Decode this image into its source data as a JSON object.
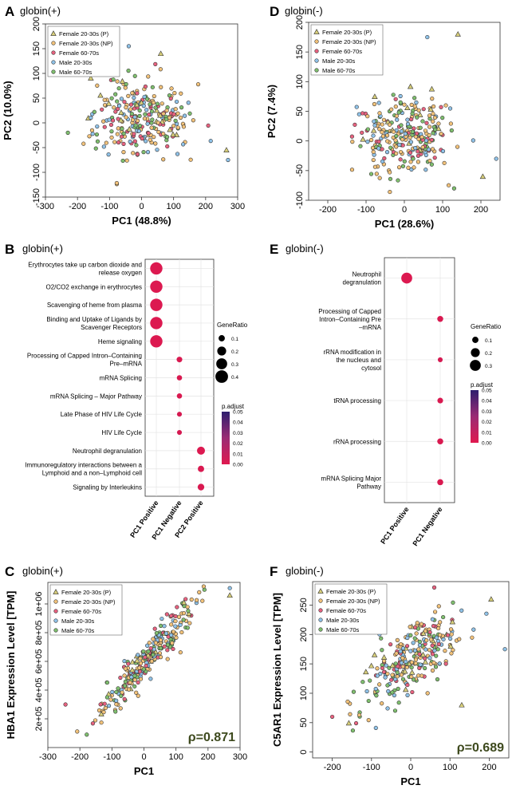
{
  "colors": {
    "female_p": "#d8cf7a",
    "female_np": "#f2c27a",
    "female_old": "#e7627f",
    "male_young": "#8fc2e8",
    "male_old": "#7fbf6e",
    "dot_high": "#e0194f",
    "dot_low": "#2e1e6e"
  },
  "groups": [
    "Female 20-30s (P)",
    "Female 20-30s (NP)",
    "Female 60-70s",
    "Male 20-30s",
    "Male 60-70s"
  ],
  "panels": {
    "A": {
      "letter": "A",
      "title": "globin(+)"
    },
    "B": {
      "letter": "B",
      "title": "globin(+)"
    },
    "C": {
      "letter": "C",
      "title": "globin(+)"
    },
    "D": {
      "letter": "D",
      "title": "globin(-)"
    },
    "E": {
      "letter": "E",
      "title": "globin(-)"
    },
    "F": {
      "letter": "F",
      "title": "globin(-)"
    }
  },
  "chart_data": [
    {
      "id": "A",
      "type": "scatter",
      "title": "globin(+)",
      "xlabel": "PC1 (48.8%)",
      "ylabel": "PC2 (10.0%)",
      "xlim": [
        -300,
        300
      ],
      "ylim": [
        -150,
        200
      ],
      "xticks": [
        -300,
        -200,
        -100,
        0,
        100,
        200,
        300
      ],
      "yticks": [
        -150,
        -100,
        -50,
        0,
        50,
        100,
        150,
        200
      ],
      "legend": [
        "Female 20-30s (P)",
        "Female 20-30s (NP)",
        "Female 60-70s",
        "Male 20-30s",
        "Male 60-70s"
      ],
      "legend_position": "top-left",
      "n_points": 260,
      "cloud": {
        "x_mean": 0,
        "x_sd": 75,
        "y_mean": 5,
        "y_sd": 38,
        "slope": 0
      },
      "highlighted_points": [
        {
          "x": 265,
          "y": -55,
          "group": "Female 20-30s (P)"
        },
        {
          "x": 270,
          "y": -75,
          "group": "Male 20-30s"
        },
        {
          "x": 60,
          "y": 140,
          "group": "Female 20-30s (P)"
        },
        {
          "x": -40,
          "y": 155,
          "group": "Male 20-30s"
        },
        {
          "x": -230,
          "y": -20,
          "group": "Male 60-70s"
        }
      ]
    },
    {
      "id": "D",
      "type": "scatter",
      "title": "globin(-)",
      "xlabel": "PC1 (28.6%)",
      "ylabel": "PC2 (7.4%)",
      "xlim": [
        -250,
        250
      ],
      "ylim": [
        -100,
        200
      ],
      "xticks": [
        -200,
        -100,
        0,
        100,
        200
      ],
      "yticks": [
        -100,
        -50,
        0,
        50,
        100,
        150,
        200
      ],
      "legend": [
        "Female 20-30s (P)",
        "Female 20-30s (NP)",
        "Female 60-70s",
        "Male 20-30s",
        "Male 60-70s"
      ],
      "legend_position": "top-left",
      "n_points": 260,
      "cloud": {
        "x_mean": 0,
        "x_sd": 65,
        "y_mean": 10,
        "y_sd": 32,
        "slope": 0
      },
      "highlighted_points": [
        {
          "x": 140,
          "y": 180,
          "group": "Female 20-30s (P)"
        },
        {
          "x": 60,
          "y": 175,
          "group": "Male 20-30s"
        },
        {
          "x": 205,
          "y": -60,
          "group": "Female 20-30s (P)"
        },
        {
          "x": 240,
          "y": -30,
          "group": "Male 20-30s"
        },
        {
          "x": 130,
          "y": -80,
          "group": "Male 60-70s"
        }
      ]
    },
    {
      "id": "B",
      "type": "dot",
      "title": "globin(+)",
      "categories": [
        "PC1 Positive",
        "PC1 Negative",
        "PC2 Positive"
      ],
      "terms": [
        "Erythrocytes take up carbon dioxide and release oxygen",
        "O2/CO2 exchange in erythrocytes",
        "Scavenging of heme from plasma",
        "Binding and Uptake of Ligands by Scavenger Receptors",
        "Heme signaling",
        "Processing of Capped Intron–Containing Pre–mRNA",
        "mRNA Splicing",
        "mRNA Splicing – Major Pathway",
        "Late Phase of HIV Life Cycle",
        "HIV Life Cycle",
        "Neutrophil degranulation",
        "Immunoregulatory interactions between a Lymphoid and a non–Lymphoid cell",
        "Signaling by Interleukins"
      ],
      "points": [
        {
          "term": 0,
          "cat": 0,
          "gene_ratio": 0.38,
          "p_adjust": 0.001
        },
        {
          "term": 1,
          "cat": 0,
          "gene_ratio": 0.38,
          "p_adjust": 0.001
        },
        {
          "term": 2,
          "cat": 0,
          "gene_ratio": 0.38,
          "p_adjust": 0.001
        },
        {
          "term": 3,
          "cat": 0,
          "gene_ratio": 0.38,
          "p_adjust": 0.001
        },
        {
          "term": 4,
          "cat": 0,
          "gene_ratio": 0.38,
          "p_adjust": 0.001
        },
        {
          "term": 5,
          "cat": 1,
          "gene_ratio": 0.08,
          "p_adjust": 0.002
        },
        {
          "term": 6,
          "cat": 1,
          "gene_ratio": 0.07,
          "p_adjust": 0.002
        },
        {
          "term": 7,
          "cat": 1,
          "gene_ratio": 0.07,
          "p_adjust": 0.002
        },
        {
          "term": 8,
          "cat": 1,
          "gene_ratio": 0.06,
          "p_adjust": 0.003
        },
        {
          "term": 9,
          "cat": 1,
          "gene_ratio": 0.06,
          "p_adjust": 0.003
        },
        {
          "term": 10,
          "cat": 2,
          "gene_ratio": 0.16,
          "p_adjust": 0.001
        },
        {
          "term": 11,
          "cat": 2,
          "gene_ratio": 0.1,
          "p_adjust": 0.002
        },
        {
          "term": 12,
          "cat": 2,
          "gene_ratio": 0.11,
          "p_adjust": 0.002
        }
      ],
      "size_legend": {
        "title": "GeneRatio",
        "values": [
          0.1,
          0.2,
          0.3,
          0.4
        ]
      },
      "color_legend": {
        "title": "p.adjust",
        "ticks": [
          "0.05",
          "0.04",
          "0.03",
          "0.02",
          "0.01",
          "0.00"
        ]
      }
    },
    {
      "id": "E",
      "type": "dot",
      "title": "globin(-)",
      "categories": [
        "PC1 Positive",
        "PC1 Negative"
      ],
      "terms": [
        "Neutrophil degranulation",
        "Processing of Capped Intron–Containing Pre –mRNA",
        "rRNA modification in the nucleus and cytosol",
        "tRNA processing",
        "rRNA processing",
        "mRNA Splicing Major Pathway"
      ],
      "points": [
        {
          "term": 0,
          "cat": 0,
          "gene_ratio": 0.3,
          "p_adjust": 0.001
        },
        {
          "term": 1,
          "cat": 1,
          "gene_ratio": 0.09,
          "p_adjust": 0.002
        },
        {
          "term": 2,
          "cat": 1,
          "gene_ratio": 0.06,
          "p_adjust": 0.003
        },
        {
          "term": 3,
          "cat": 1,
          "gene_ratio": 0.08,
          "p_adjust": 0.002
        },
        {
          "term": 4,
          "cat": 1,
          "gene_ratio": 0.09,
          "p_adjust": 0.002
        },
        {
          "term": 5,
          "cat": 1,
          "gene_ratio": 0.09,
          "p_adjust": 0.002
        }
      ],
      "size_legend": {
        "title": "GeneRatio",
        "values": [
          0.1,
          0.2,
          0.3
        ]
      },
      "color_legend": {
        "title": "p.adjust",
        "ticks": [
          "0.05",
          "0.04",
          "0.03",
          "0.02",
          "0.01",
          "0.00"
        ]
      }
    },
    {
      "id": "C",
      "type": "scatter",
      "title": "globin(+)",
      "xlabel": "PC1",
      "ylabel": "HBA1 Expression Level [TPM]",
      "xlim": [
        -300,
        300
      ],
      "ylim": [
        0,
        1150000
      ],
      "xticks": [
        -300,
        -200,
        -100,
        0,
        100,
        200,
        300
      ],
      "yticks": [
        200000,
        400000,
        600000,
        800000,
        1000000
      ],
      "ytick_labels": [
        "2e+05",
        "4e+05",
        "6e+05",
        "8e+05",
        "1e+06"
      ],
      "legend": [
        "Female 20-30s (P)",
        "Female 20-30s (NP)",
        "Female 60-70s",
        "Male 20-30s",
        "Male 60-70s"
      ],
      "legend_position": "top-left",
      "annotation": "ρ=0.871",
      "n_points": 260,
      "cloud": {
        "x_mean": 10,
        "x_sd": 75,
        "y_mean": 620000,
        "y_sd": 70000,
        "slope": 2400
      },
      "highlighted_points": [
        {
          "x": 268,
          "y": 1110000,
          "group": "Male 20-30s"
        },
        {
          "x": 268,
          "y": 1060000,
          "group": "Female 20-30s (P)"
        },
        {
          "x": -245,
          "y": 300000,
          "group": "Female 60-70s"
        }
      ]
    },
    {
      "id": "F",
      "type": "scatter",
      "title": "globin(-)",
      "xlabel": "PC1",
      "ylabel": "C5AR1 Expression Level [TPM]",
      "xlim": [
        -250,
        250
      ],
      "ylim": [
        -10,
        290
      ],
      "xticks": [
        -200,
        -100,
        0,
        100,
        200
      ],
      "yticks": [
        0,
        50,
        100,
        150,
        200,
        250
      ],
      "legend": [
        "Female 20-30s (P)",
        "Female 20-30s (NP)",
        "Female 60-70s",
        "Male 20-30s",
        "Male 60-70s"
      ],
      "legend_position": "top-left",
      "annotation": "ρ=0.689",
      "n_points": 260,
      "cloud": {
        "x_mean": 0,
        "x_sd": 65,
        "y_mean": 160,
        "y_sd": 28,
        "slope": 0.45
      },
      "highlighted_points": [
        {
          "x": 205,
          "y": 260,
          "group": "Female 20-30s (P)"
        },
        {
          "x": 240,
          "y": 175,
          "group": "Male 20-30s"
        },
        {
          "x": 130,
          "y": 80,
          "group": "Female 20-30s (P)"
        },
        {
          "x": -200,
          "y": 60,
          "group": "Female 60-70s"
        },
        {
          "x": 60,
          "y": 280,
          "group": "Female 60-70s"
        }
      ]
    }
  ]
}
